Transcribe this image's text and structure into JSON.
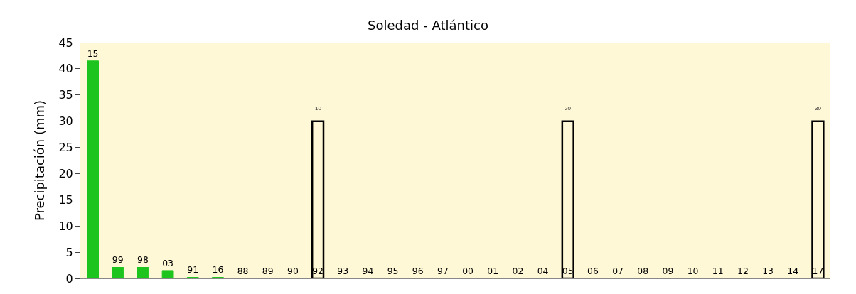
{
  "chart_data": {
    "type": "bar",
    "title": "Soledad - Atlántico",
    "ylabel": "Precipitación (mm)",
    "categories": [
      "15",
      "99",
      "98",
      "03",
      "91",
      "16",
      "88",
      "89",
      "90",
      "92",
      "93",
      "94",
      "95",
      "96",
      "97",
      "00",
      "01",
      "02",
      "04",
      "05",
      "06",
      "07",
      "08",
      "09",
      "10",
      "11",
      "12",
      "13",
      "14",
      "17"
    ],
    "series": [
      {
        "color": "#1ec41e",
        "values": [
          41.5,
          2.1,
          2.1,
          1.5,
          0.2,
          0.2,
          0,
          0,
          0,
          0,
          0,
          0,
          0,
          0,
          0,
          0,
          0,
          0,
          0,
          0,
          0,
          0,
          0,
          0,
          0,
          0,
          0,
          0,
          0,
          0
        ]
      },
      {
        "color": "#000000",
        "values": [
          null,
          null,
          null,
          null,
          null,
          null,
          null,
          null,
          null,
          30,
          null,
          null,
          null,
          null,
          null,
          null,
          null,
          null,
          null,
          30,
          null,
          null,
          null,
          null,
          null,
          null,
          null,
          null,
          null,
          30
        ]
      }
    ],
    "annotations": [
      {
        "text": "10",
        "x": "92",
        "y": 30
      },
      {
        "text": "20",
        "x": "05",
        "y": 30
      },
      {
        "text": "30",
        "x": "17",
        "y": 30
      }
    ],
    "ylim": [
      0,
      45
    ],
    "yticks": [
      0,
      5,
      10,
      15,
      20,
      25,
      30,
      35,
      40,
      45
    ],
    "grid": false
  }
}
